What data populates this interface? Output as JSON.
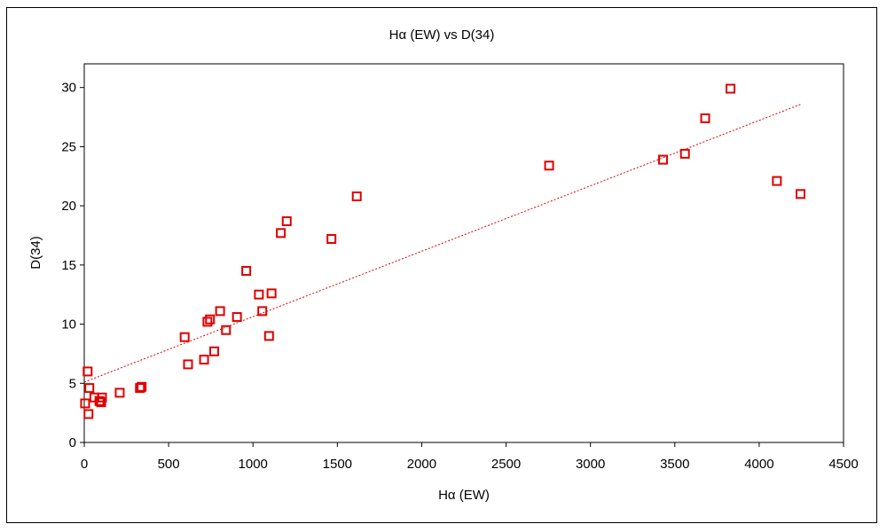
{
  "chart_data": {
    "type": "scatter",
    "title": "Hα (EW) vs D(34)",
    "xlabel": "Hα (EW)",
    "ylabel": "D(34)",
    "xlim": [
      0,
      4500
    ],
    "ylim": [
      0,
      32
    ],
    "x_ticks": [
      0,
      500,
      1000,
      1500,
      2000,
      2500,
      3000,
      3500,
      4000,
      4500
    ],
    "y_ticks": [
      0,
      5,
      10,
      15,
      20,
      25,
      30
    ],
    "grid": false,
    "legend": "none",
    "marker": "open-square",
    "color": "#e00000",
    "points": [
      {
        "x": 5,
        "y": 3.3
      },
      {
        "x": 20,
        "y": 6.0
      },
      {
        "x": 25,
        "y": 2.4
      },
      {
        "x": 30,
        "y": 4.6
      },
      {
        "x": 60,
        "y": 3.8
      },
      {
        "x": 90,
        "y": 3.5
      },
      {
        "x": 100,
        "y": 3.4
      },
      {
        "x": 105,
        "y": 3.8
      },
      {
        "x": 210,
        "y": 4.2
      },
      {
        "x": 330,
        "y": 4.6
      },
      {
        "x": 340,
        "y": 4.7
      },
      {
        "x": 595,
        "y": 8.9
      },
      {
        "x": 615,
        "y": 6.6
      },
      {
        "x": 710,
        "y": 7.0
      },
      {
        "x": 730,
        "y": 10.2
      },
      {
        "x": 745,
        "y": 10.4
      },
      {
        "x": 770,
        "y": 7.7
      },
      {
        "x": 805,
        "y": 11.1
      },
      {
        "x": 840,
        "y": 9.5
      },
      {
        "x": 905,
        "y": 10.6
      },
      {
        "x": 960,
        "y": 14.5
      },
      {
        "x": 1035,
        "y": 12.5
      },
      {
        "x": 1055,
        "y": 11.1
      },
      {
        "x": 1095,
        "y": 9.0
      },
      {
        "x": 1110,
        "y": 12.6
      },
      {
        "x": 1165,
        "y": 17.7
      },
      {
        "x": 1200,
        "y": 18.7
      },
      {
        "x": 1465,
        "y": 17.2
      },
      {
        "x": 1615,
        "y": 20.8
      },
      {
        "x": 2755,
        "y": 23.4
      },
      {
        "x": 3430,
        "y": 23.9
      },
      {
        "x": 3560,
        "y": 24.4
      },
      {
        "x": 3680,
        "y": 27.4
      },
      {
        "x": 3830,
        "y": 29.9
      },
      {
        "x": 4105,
        "y": 22.1
      },
      {
        "x": 4245,
        "y": 21.0
      }
    ],
    "trendline": {
      "type": "linear",
      "x0": 0,
      "y0": 5.1,
      "x1": 4250,
      "y1": 28.6,
      "style": "dotted",
      "color": "#e00000"
    }
  }
}
